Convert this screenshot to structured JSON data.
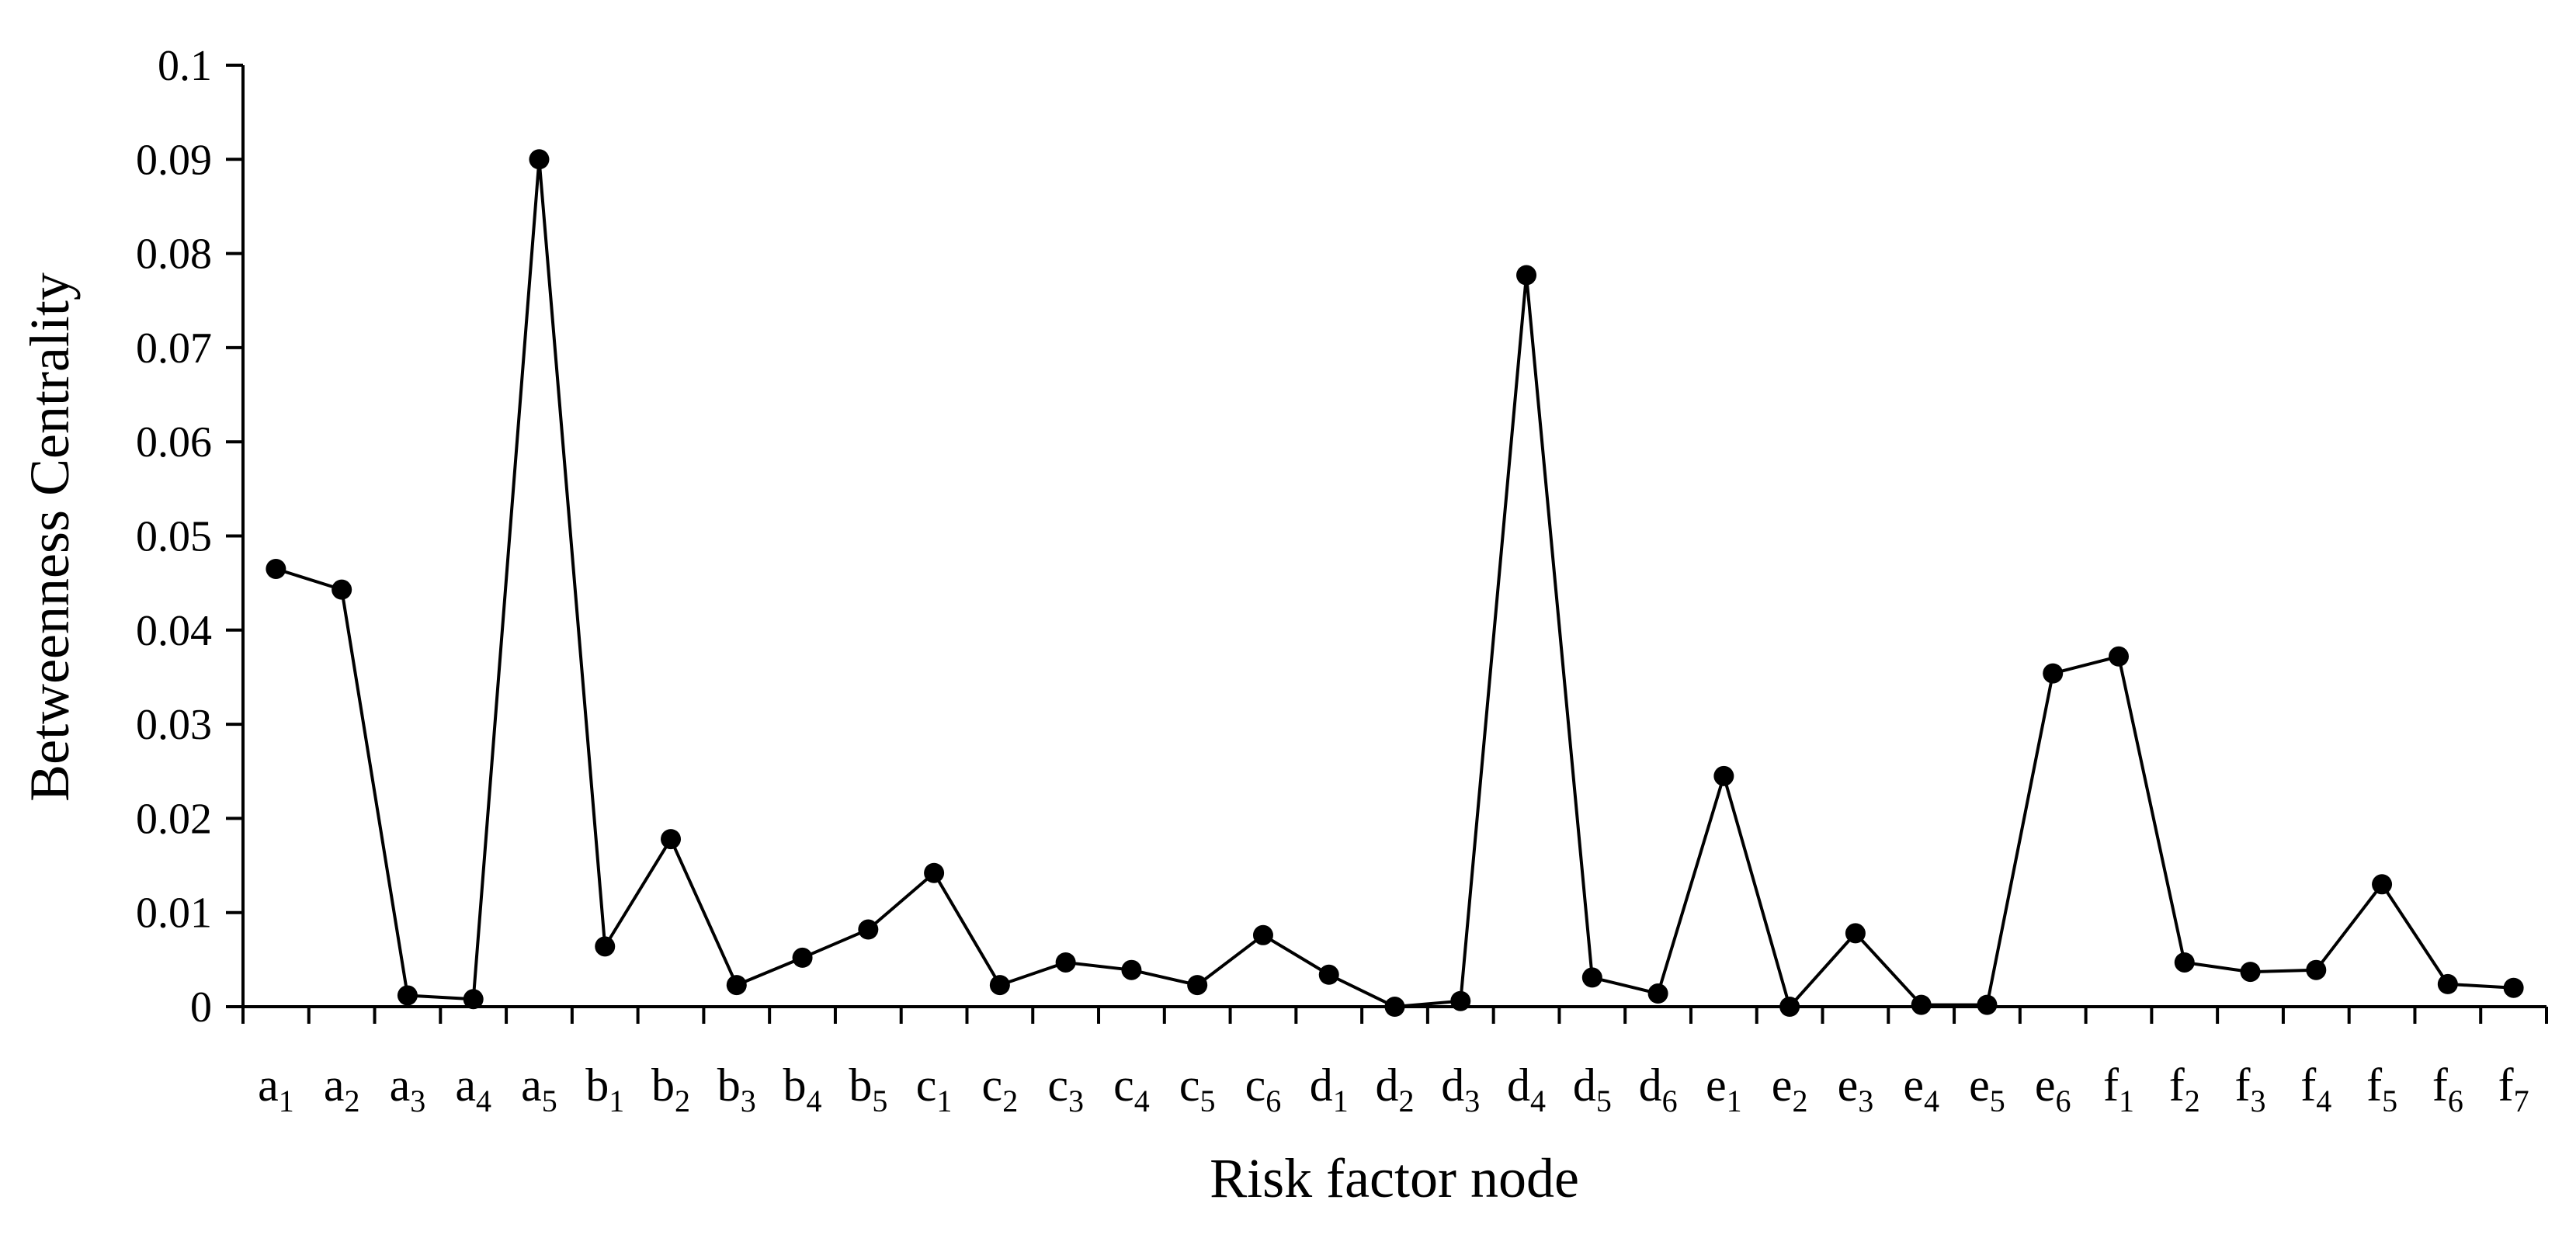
{
  "chart_data": {
    "type": "line",
    "title": "",
    "xlabel": "Risk factor node",
    "ylabel": "Betweenness Centrality",
    "ylim": [
      0,
      0.1
    ],
    "yticks": [
      0,
      0.01,
      0.02,
      0.03,
      0.04,
      0.05,
      0.06,
      0.07,
      0.08,
      0.09,
      0.1
    ],
    "ytick_labels": [
      "0",
      "0.01",
      "0.02",
      "0.03",
      "0.04",
      "0.05",
      "0.06",
      "0.07",
      "0.08",
      "0.09",
      "0.1"
    ],
    "grid": false,
    "legend": "none",
    "marker": "circle",
    "line_color": "#000000",
    "categories": [
      {
        "base": "a",
        "sub": "1"
      },
      {
        "base": "a",
        "sub": "2"
      },
      {
        "base": "a",
        "sub": "3"
      },
      {
        "base": "a",
        "sub": "4"
      },
      {
        "base": "a",
        "sub": "5"
      },
      {
        "base": "b",
        "sub": "1"
      },
      {
        "base": "b",
        "sub": "2"
      },
      {
        "base": "b",
        "sub": "3"
      },
      {
        "base": "b",
        "sub": "4"
      },
      {
        "base": "b",
        "sub": "5"
      },
      {
        "base": "c",
        "sub": "1"
      },
      {
        "base": "c",
        "sub": "2"
      },
      {
        "base": "c",
        "sub": "3"
      },
      {
        "base": "c",
        "sub": "4"
      },
      {
        "base": "c",
        "sub": "5"
      },
      {
        "base": "c",
        "sub": "6"
      },
      {
        "base": "d",
        "sub": "1"
      },
      {
        "base": "d",
        "sub": "2"
      },
      {
        "base": "d",
        "sub": "3"
      },
      {
        "base": "d",
        "sub": "4"
      },
      {
        "base": "d",
        "sub": "5"
      },
      {
        "base": "d",
        "sub": "6"
      },
      {
        "base": "e",
        "sub": "1"
      },
      {
        "base": "e",
        "sub": "2"
      },
      {
        "base": "e",
        "sub": "3"
      },
      {
        "base": "e",
        "sub": "4"
      },
      {
        "base": "e",
        "sub": "5"
      },
      {
        "base": "e",
        "sub": "6"
      },
      {
        "base": "f",
        "sub": "1"
      },
      {
        "base": "f",
        "sub": "2"
      },
      {
        "base": "f",
        "sub": "3"
      },
      {
        "base": "f",
        "sub": "4"
      },
      {
        "base": "f",
        "sub": "5"
      },
      {
        "base": "f",
        "sub": "6"
      },
      {
        "base": "f",
        "sub": "7"
      }
    ],
    "values": [
      0.0465,
      0.0443,
      0.0012,
      0.0008,
      0.09,
      0.0064,
      0.0178,
      0.0023,
      0.0052,
      0.0082,
      0.0142,
      0.0023,
      0.0047,
      0.0039,
      0.0023,
      0.0076,
      0.0034,
      0.0,
      0.0006,
      0.0777,
      0.0031,
      0.0014,
      0.0245,
      0.0,
      0.0078,
      0.0002,
      0.0002,
      0.0354,
      0.0372,
      0.0047,
      0.0037,
      0.0039,
      0.013,
      0.0024,
      0.002
    ]
  }
}
